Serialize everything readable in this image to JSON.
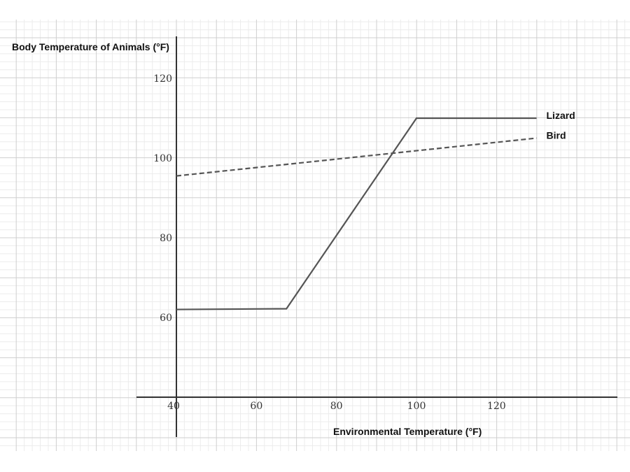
{
  "chart_data": {
    "type": "line",
    "title": "",
    "xlabel": "Environmental Temperature (°F)",
    "ylabel": "Body Temperature of Animals (°F)",
    "xlim": [
      40,
      130
    ],
    "ylim": [
      40,
      120
    ],
    "x_ticks": [
      40,
      60,
      80,
      100,
      120
    ],
    "y_ticks": [
      60,
      80,
      100,
      120
    ],
    "grid": true,
    "legend": "direct labels at line ends",
    "series": [
      {
        "name": "Lizard",
        "style": "solid",
        "color": "#555555",
        "points": [
          [
            40,
            62
          ],
          [
            67.5,
            62.2
          ],
          [
            100,
            110
          ],
          [
            130,
            110
          ]
        ]
      },
      {
        "name": "Bird",
        "style": "dashed",
        "color": "#555555",
        "points": [
          [
            40,
            95.5
          ],
          [
            130,
            105
          ]
        ]
      }
    ]
  }
}
